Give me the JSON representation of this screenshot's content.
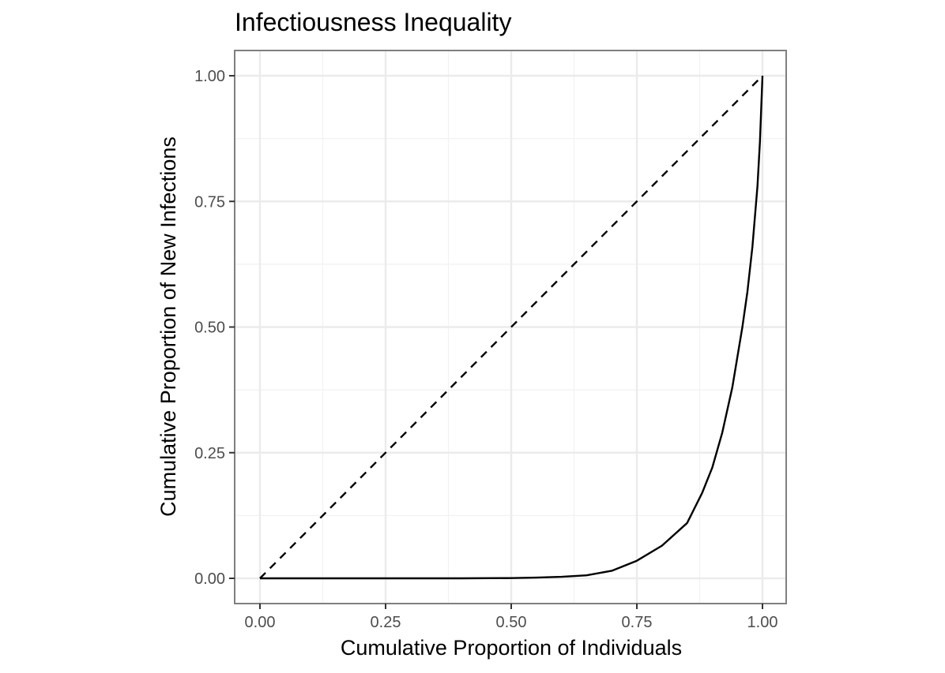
{
  "chart_data": {
    "type": "line",
    "title": "Infectiousness Inequality",
    "xlabel": "Cumulative Proportion of Individuals",
    "ylabel": "Cumulative Proportion of New Infections",
    "xlim": [
      0,
      1
    ],
    "ylim": [
      0,
      1
    ],
    "x_ticks": [
      "0.00",
      "0.25",
      "0.50",
      "0.75",
      "1.00"
    ],
    "y_ticks": [
      "0.00",
      "0.25",
      "0.50",
      "0.75",
      "1.00"
    ],
    "grid": true,
    "legend": "none",
    "series": [
      {
        "style": "dashed",
        "color": "#000000",
        "x": [
          0,
          1
        ],
        "y": [
          0,
          1
        ]
      },
      {
        "style": "solid",
        "color": "#000000",
        "x": [
          0,
          0.1,
          0.2,
          0.3,
          0.4,
          0.5,
          0.55,
          0.6,
          0.65,
          0.7,
          0.75,
          0.8,
          0.85,
          0.88,
          0.9,
          0.92,
          0.94,
          0.96,
          0.97,
          0.98,
          0.99,
          0.995,
          1.0
        ],
        "y": [
          0,
          0,
          0,
          0,
          0,
          0.0005,
          0.0015,
          0.003,
          0.006,
          0.015,
          0.035,
          0.065,
          0.11,
          0.17,
          0.22,
          0.29,
          0.38,
          0.5,
          0.57,
          0.66,
          0.78,
          0.87,
          1.0
        ]
      }
    ]
  }
}
